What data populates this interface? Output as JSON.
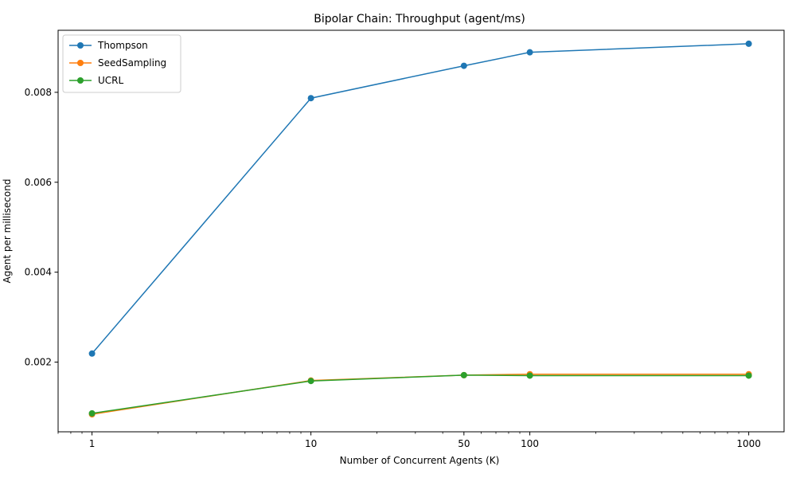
{
  "chart_data": {
    "type": "line",
    "title": "Bipolar Chain: Throughput (agent/ms)",
    "xlabel": "Number of Concurrent Agents (K)",
    "ylabel": "Agent per millisecond",
    "x_scale": "log",
    "x": [
      1,
      10,
      50,
      100,
      1000
    ],
    "x_tick_labels": [
      "1",
      "10",
      "50",
      "100",
      "1000"
    ],
    "y_tick_values": [
      0.002,
      0.004,
      0.006,
      0.008
    ],
    "y_tick_labels": [
      "0.002",
      "0.004",
      "0.006",
      "0.008"
    ],
    "xlim": [
      0.7,
      1450
    ],
    "ylim": [
      0.00045,
      0.00938
    ],
    "grid": false,
    "legend_position": "upper-left",
    "series": [
      {
        "name": "Thompson",
        "color": "#1f77b4",
        "values": [
          0.00219,
          0.00787,
          0.00859,
          0.00889,
          0.00908
        ]
      },
      {
        "name": "SeedSampling",
        "color": "#ff7f0e",
        "values": [
          0.00084,
          0.00159,
          0.00171,
          0.00173,
          0.00173
        ]
      },
      {
        "name": "UCRL",
        "color": "#2ca02c",
        "values": [
          0.00086,
          0.00158,
          0.00171,
          0.0017,
          0.0017
        ]
      }
    ]
  }
}
